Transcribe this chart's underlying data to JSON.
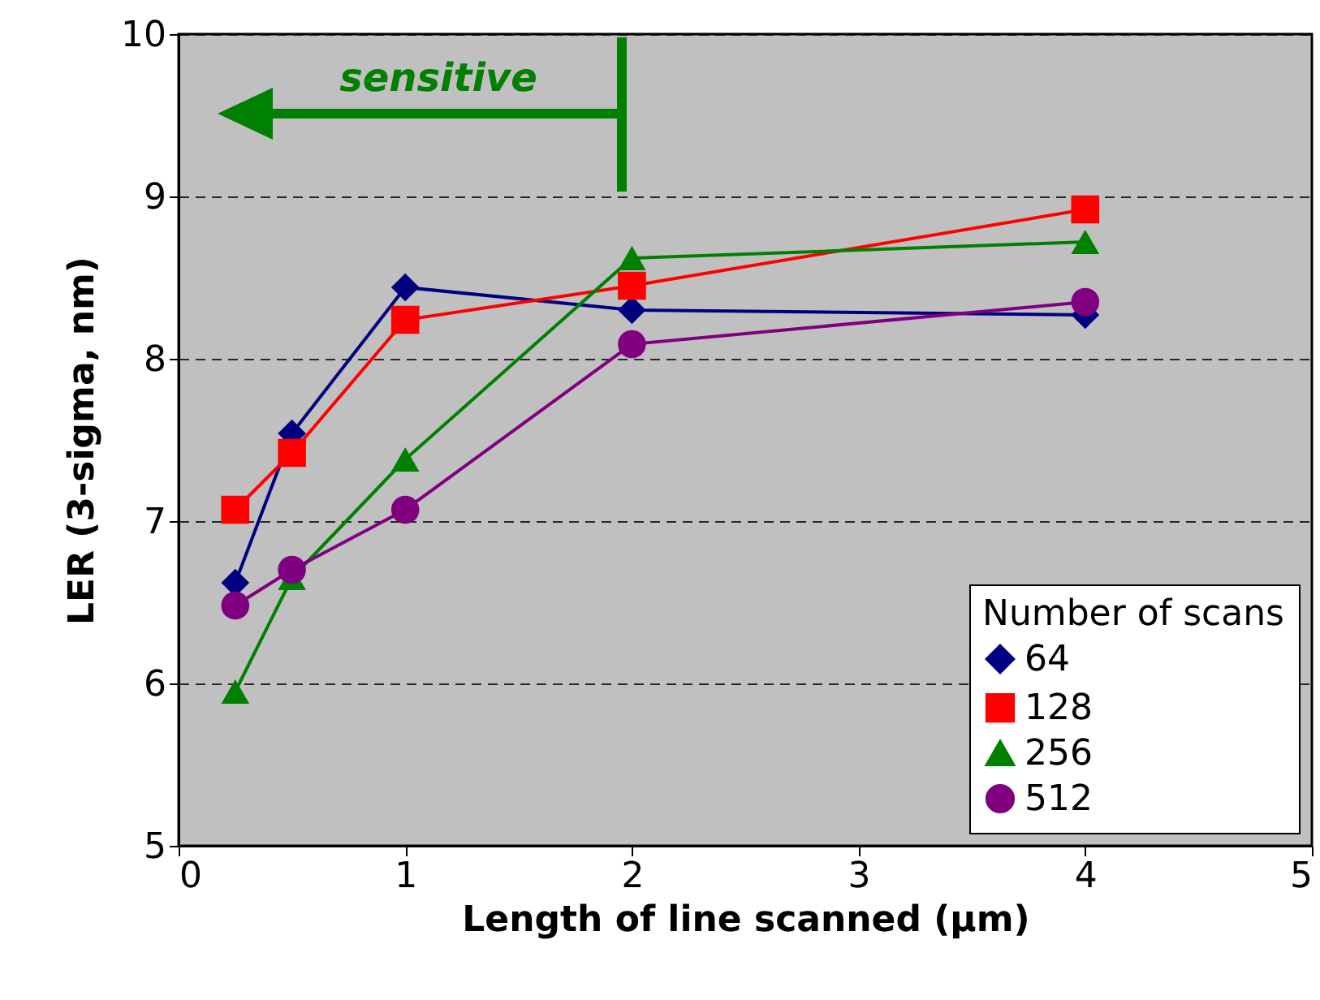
{
  "chart_data": {
    "type": "line",
    "xlabel": "Length of line scanned (µm)",
    "ylabel": "LER (3-sigma, nm)",
    "legend_title": "Number of scans",
    "legend": "bottom right",
    "grid": "y",
    "xlim": [
      0,
      5
    ],
    "xticks": [
      0,
      1,
      2,
      3,
      4,
      5
    ],
    "ylim": [
      5,
      10
    ],
    "yticks": [
      5,
      6,
      7,
      8,
      9,
      10
    ],
    "x": [
      0.25,
      0.5,
      1,
      2,
      4
    ],
    "series": [
      {
        "name": "64",
        "color": "#000080",
        "marker": "diamond",
        "values": [
          6.62,
          7.54,
          8.44,
          8.3,
          8.27
        ]
      },
      {
        "name": "128",
        "color": "#ff0000",
        "marker": "square",
        "values": [
          7.07,
          7.42,
          8.24,
          8.45,
          8.92
        ]
      },
      {
        "name": "256",
        "color": "#008000",
        "marker": "triangle",
        "values": [
          5.95,
          6.65,
          7.38,
          8.62,
          8.72
        ]
      },
      {
        "name": "512",
        "color": "#800080",
        "marker": "circle",
        "values": [
          6.48,
          6.7,
          7.07,
          8.09,
          8.35
        ]
      }
    ],
    "annotations": [
      "sensitive"
    ]
  }
}
